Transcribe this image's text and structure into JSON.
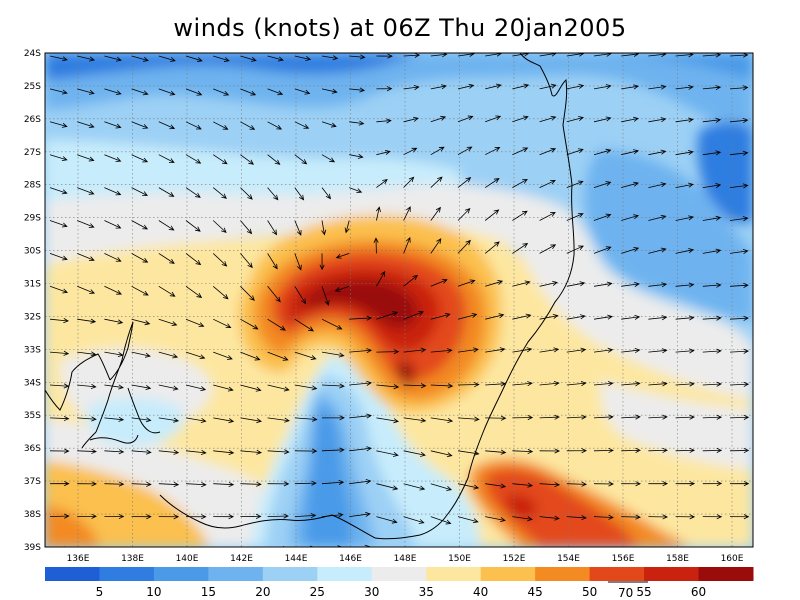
{
  "title": "winds (knots) at 06Z Thu 20jan2005",
  "lat_labels": [
    "24S",
    "25S",
    "26S",
    "27S",
    "28S",
    "29S",
    "30S",
    "31S",
    "32S",
    "33S",
    "34S",
    "35S",
    "36S",
    "37S",
    "38S",
    "39S"
  ],
  "lon_labels": [
    "136E",
    "138E",
    "140E",
    "142E",
    "144E",
    "146E",
    "148E",
    "150E",
    "152E",
    "154E",
    "156E",
    "158E",
    "160E"
  ],
  "colorbar": {
    "labels": [
      "5",
      "10",
      "15",
      "20",
      "25",
      "30",
      "35",
      "40",
      "45",
      "50",
      "55",
      "60"
    ],
    "colors": [
      "#1f5fd6",
      "#2f7de0",
      "#4a9ae8",
      "#6eb3ef",
      "#9cd0f5",
      "#c7ecfb",
      "#ececec",
      "#fde7a0",
      "#fbc04e",
      "#f38a22",
      "#e3481a",
      "#c9230f",
      "#9a0b0b"
    ]
  },
  "vector_reference": {
    "value": "70"
  },
  "colors": {
    "coast": "#000000",
    "grid": "#7a7a7a",
    "arrows": "#000000"
  }
}
